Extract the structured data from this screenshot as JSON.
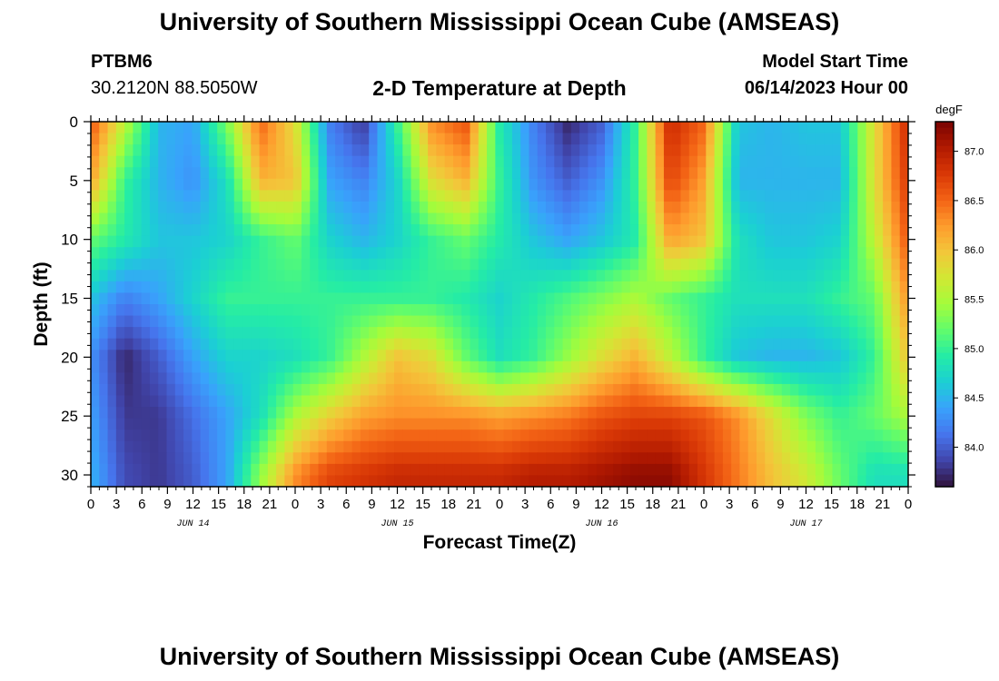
{
  "header": {
    "title": "University of Southern Mississippi Ocean Cube (AMSEAS)",
    "station_id": "PTBM6",
    "coordinates": "30.2120N  88.5050W",
    "subtitle": "2-D Temperature at Depth",
    "model_start_label": "Model Start Time",
    "model_start_value": "06/14/2023 Hour 00"
  },
  "footer": {
    "title": "University of Southern Mississippi Ocean Cube (AMSEAS)"
  },
  "chart_data": {
    "type": "heatmap",
    "title": "2-D Temperature at Depth",
    "xlabel": "Forecast Time(Z)",
    "ylabel": "Depth (ft)",
    "colorbar_unit": "degF",
    "x_range_hours": [
      0,
      96
    ],
    "y_range_ft": [
      0,
      31
    ],
    "y_inverted": true,
    "x_tick_labels": [
      "0",
      "3",
      "6",
      "9",
      "12",
      "15",
      "18",
      "21",
      "0",
      "3",
      "6",
      "9",
      "12",
      "15",
      "18",
      "21",
      "0",
      "3",
      "6",
      "9",
      "12",
      "15",
      "18",
      "21",
      "0",
      "3",
      "6",
      "9",
      "12",
      "15",
      "18",
      "21",
      "0"
    ],
    "y_tick_values": [
      0,
      5,
      10,
      15,
      20,
      25,
      30
    ],
    "y_tick_labels": [
      "0",
      "5",
      "10",
      "15",
      "20",
      "25",
      "30"
    ],
    "date_labels": [
      {
        "label": "JUN 14",
        "hour": 12
      },
      {
        "label": "JUN 15",
        "hour": 36
      },
      {
        "label": "JUN 16",
        "hour": 60
      },
      {
        "label": "JUN 17",
        "hour": 84
      }
    ],
    "colorbar_ticks": [
      "87.0",
      "86.5",
      "86.0",
      "85.5",
      "85.0",
      "84.5",
      "84.0"
    ],
    "colorbar_tick_values": [
      87.0,
      86.5,
      86.0,
      85.5,
      85.0,
      84.5,
      84.0
    ],
    "value_range_degF": [
      83.6,
      87.3
    ],
    "colormap": [
      "#30123b",
      "#4145ab",
      "#4675ed",
      "#39a2fc",
      "#1bcfd4",
      "#24eca6",
      "#61fc6c",
      "#a4fc3b",
      "#d1e834",
      "#f3c63a",
      "#fe9b2d",
      "#f36315",
      "#d93806",
      "#b11901",
      "#7a0402"
    ],
    "temperature_grid": {
      "hours": [
        0,
        4,
        8,
        12,
        16,
        20,
        24,
        28,
        32,
        36,
        40,
        44,
        48,
        52,
        56,
        60,
        64,
        68,
        72,
        76,
        80,
        84,
        88,
        92,
        96
      ],
      "depths_ft": [
        0,
        5,
        10,
        15,
        20,
        25,
        30
      ],
      "values": [
        [
          86.6,
          85.6,
          84.5,
          84.4,
          85.3,
          86.5,
          85.8,
          84.2,
          83.8,
          85.0,
          86.3,
          86.6,
          84.9,
          84.2,
          83.7,
          84.0,
          85.0,
          86.9,
          86.5,
          84.6,
          84.5,
          84.6,
          84.6,
          85.8,
          86.9
        ],
        [
          86.2,
          85.0,
          84.5,
          84.3,
          84.8,
          86.1,
          86.0,
          84.4,
          84.2,
          84.7,
          85.8,
          86.1,
          85.0,
          84.3,
          84.0,
          84.3,
          85.0,
          86.7,
          86.2,
          84.5,
          84.5,
          84.5,
          84.5,
          85.8,
          86.8
        ],
        [
          85.2,
          84.9,
          84.6,
          84.6,
          84.7,
          85.0,
          85.2,
          84.7,
          84.5,
          84.7,
          85.0,
          85.2,
          84.9,
          84.6,
          84.4,
          84.6,
          84.9,
          86.2,
          86.0,
          84.8,
          84.6,
          84.6,
          84.7,
          85.6,
          86.6
        ],
        [
          84.6,
          84.2,
          84.4,
          84.7,
          85.0,
          85.0,
          85.0,
          85.0,
          85.0,
          85.0,
          85.0,
          84.9,
          84.7,
          84.9,
          85.1,
          85.3,
          85.5,
          85.2,
          85.0,
          84.8,
          84.8,
          84.8,
          85.0,
          85.2,
          86.3
        ],
        [
          84.3,
          83.7,
          84.0,
          84.4,
          84.7,
          84.7,
          84.8,
          85.0,
          85.5,
          86.0,
          85.8,
          85.2,
          84.8,
          85.0,
          85.4,
          85.8,
          86.1,
          85.6,
          85.0,
          84.6,
          84.5,
          84.5,
          84.6,
          85.0,
          86.0
        ],
        [
          84.4,
          83.8,
          83.8,
          84.1,
          84.4,
          84.8,
          85.5,
          85.9,
          86.2,
          86.3,
          86.3,
          86.3,
          86.2,
          86.3,
          86.4,
          86.6,
          86.7,
          86.7,
          86.6,
          86.3,
          85.8,
          85.3,
          85.0,
          85.2,
          85.5
        ],
        [
          84.5,
          83.9,
          83.8,
          84.0,
          84.4,
          85.4,
          86.3,
          86.7,
          86.8,
          86.9,
          86.9,
          86.9,
          86.9,
          87.0,
          87.0,
          87.1,
          87.2,
          87.2,
          86.8,
          86.4,
          86.0,
          85.7,
          85.2,
          84.8,
          84.8
        ]
      ]
    }
  }
}
